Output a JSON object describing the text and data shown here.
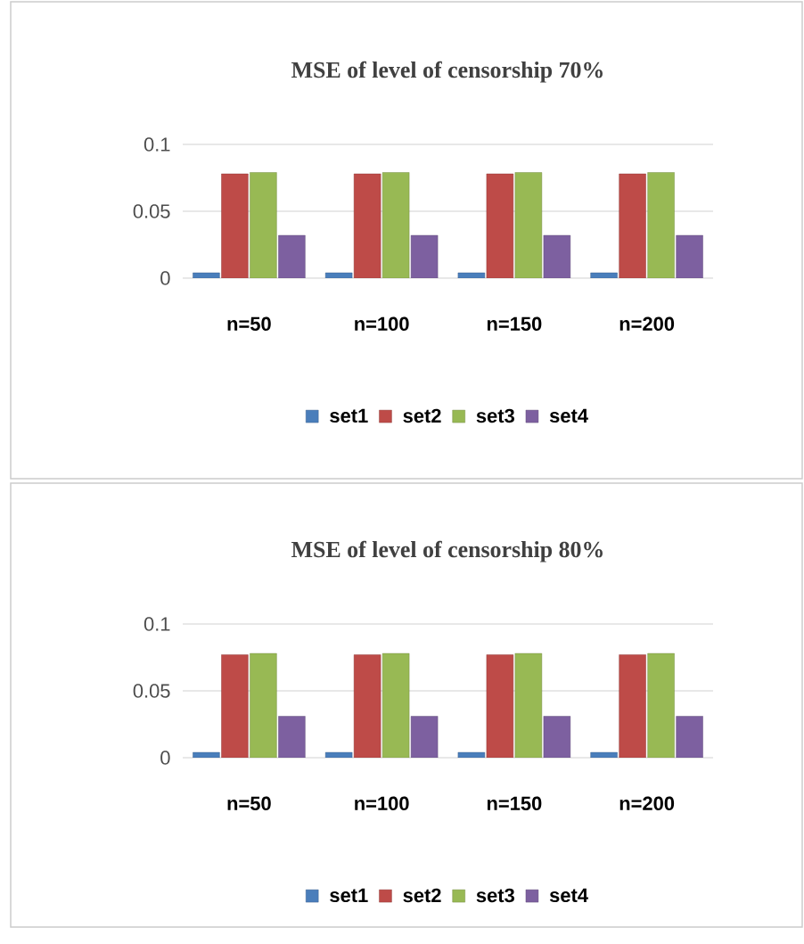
{
  "chart_data": [
    {
      "type": "bar",
      "title": "MSE of level of censorship 70%",
      "categories": [
        "n=50",
        "n=100",
        "n=150",
        "n=200"
      ],
      "series": [
        {
          "name": "set1",
          "color": "#4a7ebb",
          "values": [
            0.004,
            0.004,
            0.004,
            0.004
          ]
        },
        {
          "name": "set2",
          "color": "#be4b48",
          "values": [
            0.078,
            0.078,
            0.078,
            0.078
          ]
        },
        {
          "name": "set3",
          "color": "#98b954",
          "values": [
            0.079,
            0.079,
            0.079,
            0.079
          ]
        },
        {
          "name": "set4",
          "color": "#7d60a0",
          "values": [
            0.032,
            0.032,
            0.032,
            0.032
          ]
        }
      ],
      "ylim": [
        0,
        0.1
      ],
      "yticks": [
        0,
        0.05,
        0.1
      ],
      "grid": "y",
      "legend": "bottom"
    },
    {
      "type": "bar",
      "title": "MSE of level of censorship 80%",
      "categories": [
        "n=50",
        "n=100",
        "n=150",
        "n=200"
      ],
      "series": [
        {
          "name": "set1",
          "color": "#4a7ebb",
          "values": [
            0.004,
            0.004,
            0.004,
            0.004
          ]
        },
        {
          "name": "set2",
          "color": "#be4b48",
          "values": [
            0.077,
            0.077,
            0.077,
            0.077
          ]
        },
        {
          "name": "set3",
          "color": "#98b954",
          "values": [
            0.078,
            0.078,
            0.078,
            0.078
          ]
        },
        {
          "name": "set4",
          "color": "#7d60a0",
          "values": [
            0.031,
            0.031,
            0.031,
            0.031
          ]
        }
      ],
      "ylim": [
        0,
        0.1
      ],
      "yticks": [
        0,
        0.05,
        0.1
      ],
      "grid": "y",
      "legend": "bottom"
    }
  ]
}
